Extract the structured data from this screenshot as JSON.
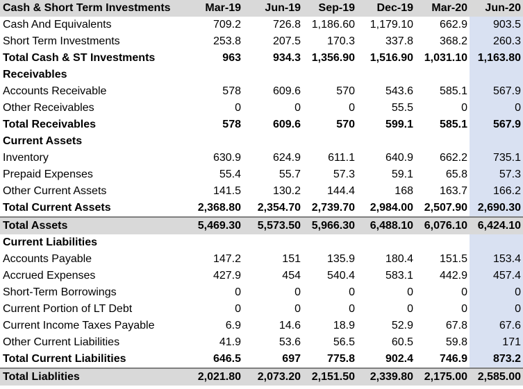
{
  "header": {
    "title": "Cash & Short Term Investments",
    "periods": [
      "Mar-19",
      "Jun-19",
      "Sep-19",
      "Dec-19",
      "Mar-20",
      "Jun-20"
    ]
  },
  "rows": [
    {
      "label": "Cash And Equivalents",
      "values": [
        "709.2",
        "726.8",
        "1,186.60",
        "1,179.10",
        "662.9",
        "903.5"
      ]
    },
    {
      "label": "Short Term Investments",
      "values": [
        "253.8",
        "207.5",
        "170.3",
        "337.8",
        "368.2",
        "260.3"
      ]
    },
    {
      "label": "Total Cash & ST Investments",
      "values": [
        "963",
        "934.3",
        "1,356.90",
        "1,516.90",
        "1,031.10",
        "1,163.80"
      ]
    },
    {
      "label": "Receivables"
    },
    {
      "label": "Accounts Receivable",
      "values": [
        "578",
        "609.6",
        "570",
        "543.6",
        "585.1",
        "567.9"
      ]
    },
    {
      "label": "Other Receivables",
      "values": [
        "0",
        "0",
        "0",
        "55.5",
        "0",
        "0"
      ]
    },
    {
      "label": "Total Receivables",
      "values": [
        "578",
        "609.6",
        "570",
        "599.1",
        "585.1",
        "567.9"
      ]
    },
    {
      "label": "Current Assets"
    },
    {
      "label": "Inventory",
      "values": [
        "630.9",
        "624.9",
        "611.1",
        "640.9",
        "662.2",
        "735.1"
      ]
    },
    {
      "label": "Prepaid Expenses",
      "values": [
        "55.4",
        "55.7",
        "57.3",
        "59.1",
        "65.8",
        "57.3"
      ]
    },
    {
      "label": "Other Current Assets",
      "values": [
        "141.5",
        "130.2",
        "144.4",
        "168",
        "163.7",
        "166.2"
      ]
    },
    {
      "label": "Total Current Assets",
      "values": [
        "2,368.80",
        "2,354.70",
        "2,739.70",
        "2,984.00",
        "2,507.90",
        "2,690.30"
      ]
    },
    {
      "label": "Total Assets",
      "values": [
        "5,469.30",
        "5,573.50",
        "5,966.30",
        "6,488.10",
        "6,076.10",
        "6,424.10"
      ]
    },
    {
      "label": "Current Liabilities"
    },
    {
      "label": "Accounts Payable",
      "values": [
        "147.2",
        "151",
        "135.9",
        "180.4",
        "151.5",
        "153.4"
      ]
    },
    {
      "label": "Accrued Expenses",
      "values": [
        "427.9",
        "454",
        "540.4",
        "583.1",
        "442.9",
        "457.4"
      ]
    },
    {
      "label": "Short-Term Borrowings",
      "values": [
        "0",
        "0",
        "0",
        "0",
        "0",
        "0"
      ]
    },
    {
      "label": "Current Portion of LT Debt",
      "values": [
        "0",
        "0",
        "0",
        "0",
        "0",
        "0"
      ]
    },
    {
      "label": "Current Income Taxes Payable",
      "values": [
        "6.9",
        "14.6",
        "18.9",
        "52.9",
        "67.8",
        "67.6"
      ]
    },
    {
      "label": "Other Current Liabilities",
      "values": [
        "41.9",
        "53.6",
        "56.5",
        "60.5",
        "59.8",
        "171"
      ]
    },
    {
      "label": "Total Current Liabilities",
      "values": [
        "646.5",
        "697",
        "775.8",
        "902.4",
        "746.9",
        "873.2"
      ]
    },
    {
      "label": "Total Liablities",
      "values": [
        "2,021.80",
        "2,073.20",
        "2,151.50",
        "2,339.80",
        "2,175.00",
        "2,585.00"
      ]
    }
  ]
}
